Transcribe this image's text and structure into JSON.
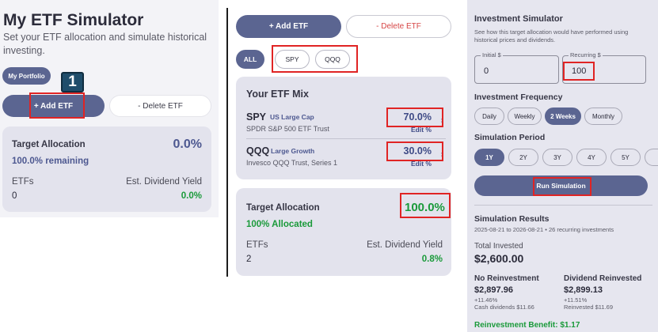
{
  "panel1": {
    "title": "My ETF Simulator",
    "subtitle": "Set your ETF allocation and simulate historical investing.",
    "portfolio_chip": "My Portfolio",
    "step_badge": "1",
    "add_label": "+ Add ETF",
    "delete_label": "- Delete ETF",
    "card": {
      "label": "Target Allocation",
      "value": "0.0%",
      "remaining": "100.0% remaining",
      "etfs_label": "ETFs",
      "etfs_value": "0",
      "yield_label": "Est. Dividend Yield",
      "yield_value": "0.0%"
    }
  },
  "panel2": {
    "add_label": "+ Add ETF",
    "delete_label": "- Delete ETF",
    "chips": [
      "ALL",
      "SPY",
      "QQQ"
    ],
    "mix": {
      "title": "Your ETF Mix",
      "items": [
        {
          "ticker": "SPY",
          "category": "US Large Cap",
          "name": "SPDR S&P 500 ETF Trust",
          "percent": "70.0%",
          "edit": "Edit %"
        },
        {
          "ticker": "QQQ",
          "category": "Large Growth",
          "name": "Invesco QQQ Trust, Series 1",
          "percent": "30.0%",
          "edit": "Edit %"
        }
      ]
    },
    "card": {
      "label": "Target Allocation",
      "value": "100.0%",
      "allocated": "100% Allocated",
      "etfs_label": "ETFs",
      "etfs_value": "2",
      "yield_label": "Est. Dividend Yield",
      "yield_value": "0.8%"
    }
  },
  "panel3": {
    "title": "Investment Simulator",
    "description": "See how this target allocation would have performed using historical prices and dividends.",
    "initial": {
      "label": "Initial $",
      "value": "0"
    },
    "recurring": {
      "label": "Recurring $",
      "value": "100"
    },
    "frequency": {
      "label": "Investment Frequency",
      "options": [
        "Daily",
        "Weekly",
        "2 Weeks",
        "Monthly"
      ],
      "selected": "2 Weeks"
    },
    "period": {
      "label": "Simulation Period",
      "options": [
        "1Y",
        "2Y",
        "3Y",
        "4Y",
        "5Y"
      ],
      "selected": "1Y"
    },
    "run_label": "Run Simulation",
    "results": {
      "title": "Simulation Results",
      "range": "2025-08-21 to 2026-08-21 • 26 recurring investments",
      "total_label": "Total Invested",
      "total_value": "$2,600.00",
      "no_reinvest": {
        "label": "No Reinvestment",
        "value": "$2,897.96",
        "pct": "+11.46%",
        "detail": "Cash dividends $11.66"
      },
      "reinvest": {
        "label": "Dividend Reinvested",
        "value": "$2,899.13",
        "pct": "+11.51%",
        "detail": "Reinvested $11.69"
      },
      "benefit": "Reinvestment Benefit: $1.17"
    }
  }
}
